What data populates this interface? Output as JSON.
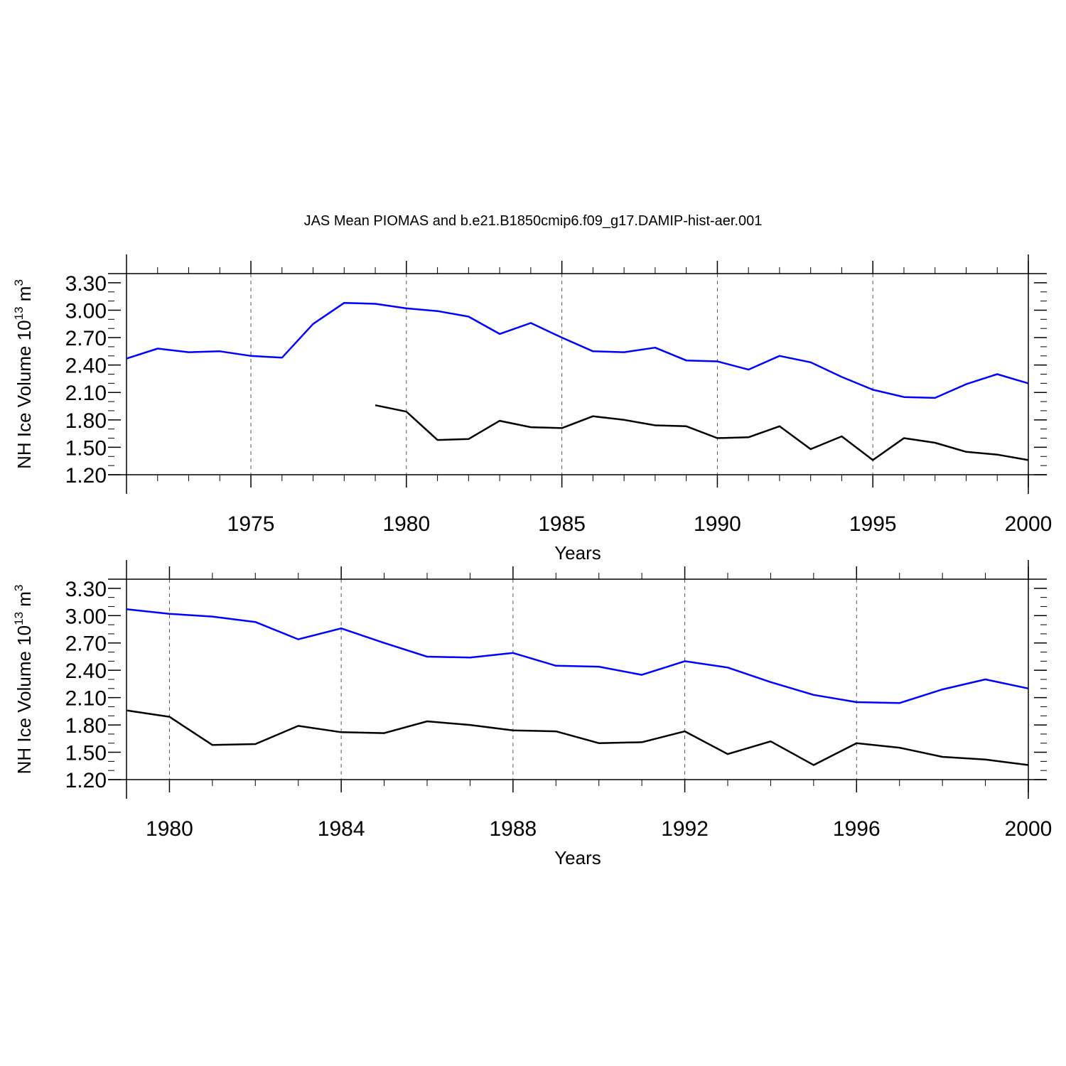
{
  "title": "JAS Mean PIOMAS and b.e21.B1850cmip6.f09_g17.DAMIP-hist-aer.001",
  "colors": {
    "model": "#0000ff",
    "piomas": "#000000",
    "grid": "#555555"
  },
  "chart_data": [
    {
      "type": "line",
      "panel": "top",
      "xlabel": "Years",
      "ylabel_base": "NH Ice Volume 10",
      "ylabel_exp": "13",
      "ylabel_unit": " m",
      "ylabel_unit_exp": "3",
      "xlim": [
        1971,
        2000
      ],
      "ylim": [
        1.2,
        3.4
      ],
      "x_major_ticks": [
        1975,
        1980,
        1985,
        1990,
        1995,
        2000
      ],
      "y_ticks": [
        1.2,
        1.5,
        1.8,
        2.1,
        2.4,
        2.7,
        3.0,
        3.3
      ],
      "y_tick_labels": [
        "1.20",
        "1.50",
        "1.80",
        "2.10",
        "2.40",
        "2.70",
        "3.00",
        "3.30"
      ],
      "series": [
        {
          "name": "b.e21.B1850cmip6.f09_g17.DAMIP-hist-aer.001",
          "color": "#0000ff",
          "x": [
            1971,
            1972,
            1973,
            1974,
            1975,
            1976,
            1977,
            1978,
            1979,
            1980,
            1981,
            1982,
            1983,
            1984,
            1985,
            1986,
            1987,
            1988,
            1989,
            1990,
            1991,
            1992,
            1993,
            1994,
            1995,
            1996,
            1997,
            1998,
            1999,
            2000
          ],
          "values": [
            2.47,
            2.58,
            2.54,
            2.55,
            2.5,
            2.48,
            2.85,
            3.08,
            3.07,
            3.02,
            2.99,
            2.93,
            2.74,
            2.86,
            2.7,
            2.55,
            2.54,
            2.59,
            2.45,
            2.44,
            2.35,
            2.5,
            2.43,
            2.27,
            2.13,
            2.05,
            2.04,
            2.19,
            2.3,
            2.2
          ]
        },
        {
          "name": "PIOMAS",
          "color": "#000000",
          "x": [
            1979,
            1980,
            1981,
            1982,
            1983,
            1984,
            1985,
            1986,
            1987,
            1988,
            1989,
            1990,
            1991,
            1992,
            1993,
            1994,
            1995,
            1996,
            1997,
            1998,
            1999,
            2000
          ],
          "values": [
            1.96,
            1.89,
            1.58,
            1.59,
            1.79,
            1.72,
            1.71,
            1.84,
            1.8,
            1.74,
            1.73,
            1.6,
            1.61,
            1.73,
            1.48,
            1.62,
            1.36,
            1.6,
            1.55,
            1.45,
            1.42,
            1.36
          ]
        }
      ]
    },
    {
      "type": "line",
      "panel": "bottom",
      "xlabel": "Years",
      "ylabel_base": "NH Ice Volume 10",
      "ylabel_exp": "13",
      "ylabel_unit": " m",
      "ylabel_unit_exp": "3",
      "xlim": [
        1979,
        2000
      ],
      "ylim": [
        1.2,
        3.4
      ],
      "x_major_ticks": [
        1980,
        1984,
        1988,
        1992,
        1996,
        2000
      ],
      "y_ticks": [
        1.2,
        1.5,
        1.8,
        2.1,
        2.4,
        2.7,
        3.0,
        3.3
      ],
      "y_tick_labels": [
        "1.20",
        "1.50",
        "1.80",
        "2.10",
        "2.40",
        "2.70",
        "3.00",
        "3.30"
      ],
      "series": [
        {
          "name": "b.e21.B1850cmip6.f09_g17.DAMIP-hist-aer.001",
          "color": "#0000ff",
          "x": [
            1979,
            1980,
            1981,
            1982,
            1983,
            1984,
            1985,
            1986,
            1987,
            1988,
            1989,
            1990,
            1991,
            1992,
            1993,
            1994,
            1995,
            1996,
            1997,
            1998,
            1999,
            2000
          ],
          "values": [
            3.07,
            3.02,
            2.99,
            2.93,
            2.74,
            2.86,
            2.7,
            2.55,
            2.54,
            2.59,
            2.45,
            2.44,
            2.35,
            2.5,
            2.43,
            2.27,
            2.13,
            2.05,
            2.04,
            2.19,
            2.3,
            2.2
          ]
        },
        {
          "name": "PIOMAS",
          "color": "#000000",
          "x": [
            1979,
            1980,
            1981,
            1982,
            1983,
            1984,
            1985,
            1986,
            1987,
            1988,
            1989,
            1990,
            1991,
            1992,
            1993,
            1994,
            1995,
            1996,
            1997,
            1998,
            1999,
            2000
          ],
          "values": [
            1.96,
            1.89,
            1.58,
            1.59,
            1.79,
            1.72,
            1.71,
            1.84,
            1.8,
            1.74,
            1.73,
            1.6,
            1.61,
            1.73,
            1.48,
            1.62,
            1.36,
            1.6,
            1.55,
            1.45,
            1.42,
            1.36
          ]
        }
      ]
    }
  ]
}
